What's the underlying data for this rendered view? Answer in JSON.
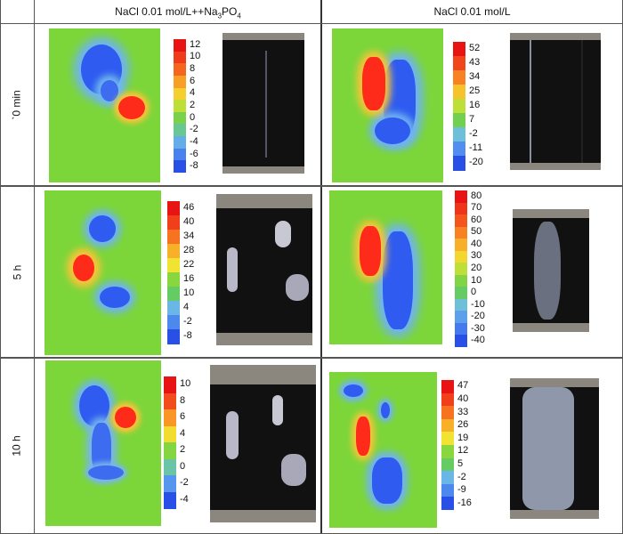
{
  "columns": [
    {
      "label_main": "NaCl 0.01 mol/L++Na",
      "label_sub": "3",
      "label_mid": "PO",
      "label_sub2": "4"
    },
    {
      "label_main": "NaCl 0.01 mol/L"
    }
  ],
  "rows": [
    {
      "label": "`0 min"
    },
    {
      "label": "5 h"
    },
    {
      "label": "10 h"
    }
  ],
  "colorbars": [
    {
      "ticks": [
        "12",
        "10",
        "8",
        "6",
        "4",
        "2",
        "0",
        "-2",
        "-4",
        "-6",
        "-8"
      ]
    },
    {
      "ticks": [
        "52",
        "43",
        "34",
        "25",
        "16",
        "7",
        "-2",
        "-11",
        "-20"
      ]
    },
    {
      "ticks": [
        "46",
        "40",
        "34",
        "28",
        "22",
        "16",
        "10",
        "4",
        "-2",
        "-8"
      ]
    },
    {
      "ticks": [
        "80",
        "70",
        "60",
        "50",
        "40",
        "30",
        "20",
        "10",
        "0",
        "-10",
        "-20",
        "-30",
        "-40"
      ]
    },
    {
      "ticks": [
        "10",
        "8",
        "6",
        "4",
        "2",
        "0",
        "-2",
        "-4"
      ]
    },
    {
      "ticks": [
        "47",
        "40",
        "33",
        "26",
        "19",
        "12",
        "5",
        "-2",
        "-9",
        "-16"
      ]
    }
  ],
  "colors": {
    "background_map": "#7cd63a",
    "anodic": "#ff2b1a",
    "cathodic": "#2a5cff",
    "grid_line": "#555555"
  },
  "panels": [
    {
      "row": 0,
      "col": 0,
      "map": "potential-map",
      "photo": "specimen-photo"
    },
    {
      "row": 0,
      "col": 1,
      "map": "potential-map",
      "photo": "specimen-photo"
    },
    {
      "row": 1,
      "col": 0,
      "map": "potential-map",
      "photo": "specimen-photo"
    },
    {
      "row": 1,
      "col": 1,
      "map": "potential-map",
      "photo": "specimen-photo"
    },
    {
      "row": 2,
      "col": 0,
      "map": "potential-map",
      "photo": "specimen-photo"
    },
    {
      "row": 2,
      "col": 1,
      "map": "potential-map",
      "photo": "specimen-photo"
    }
  ]
}
